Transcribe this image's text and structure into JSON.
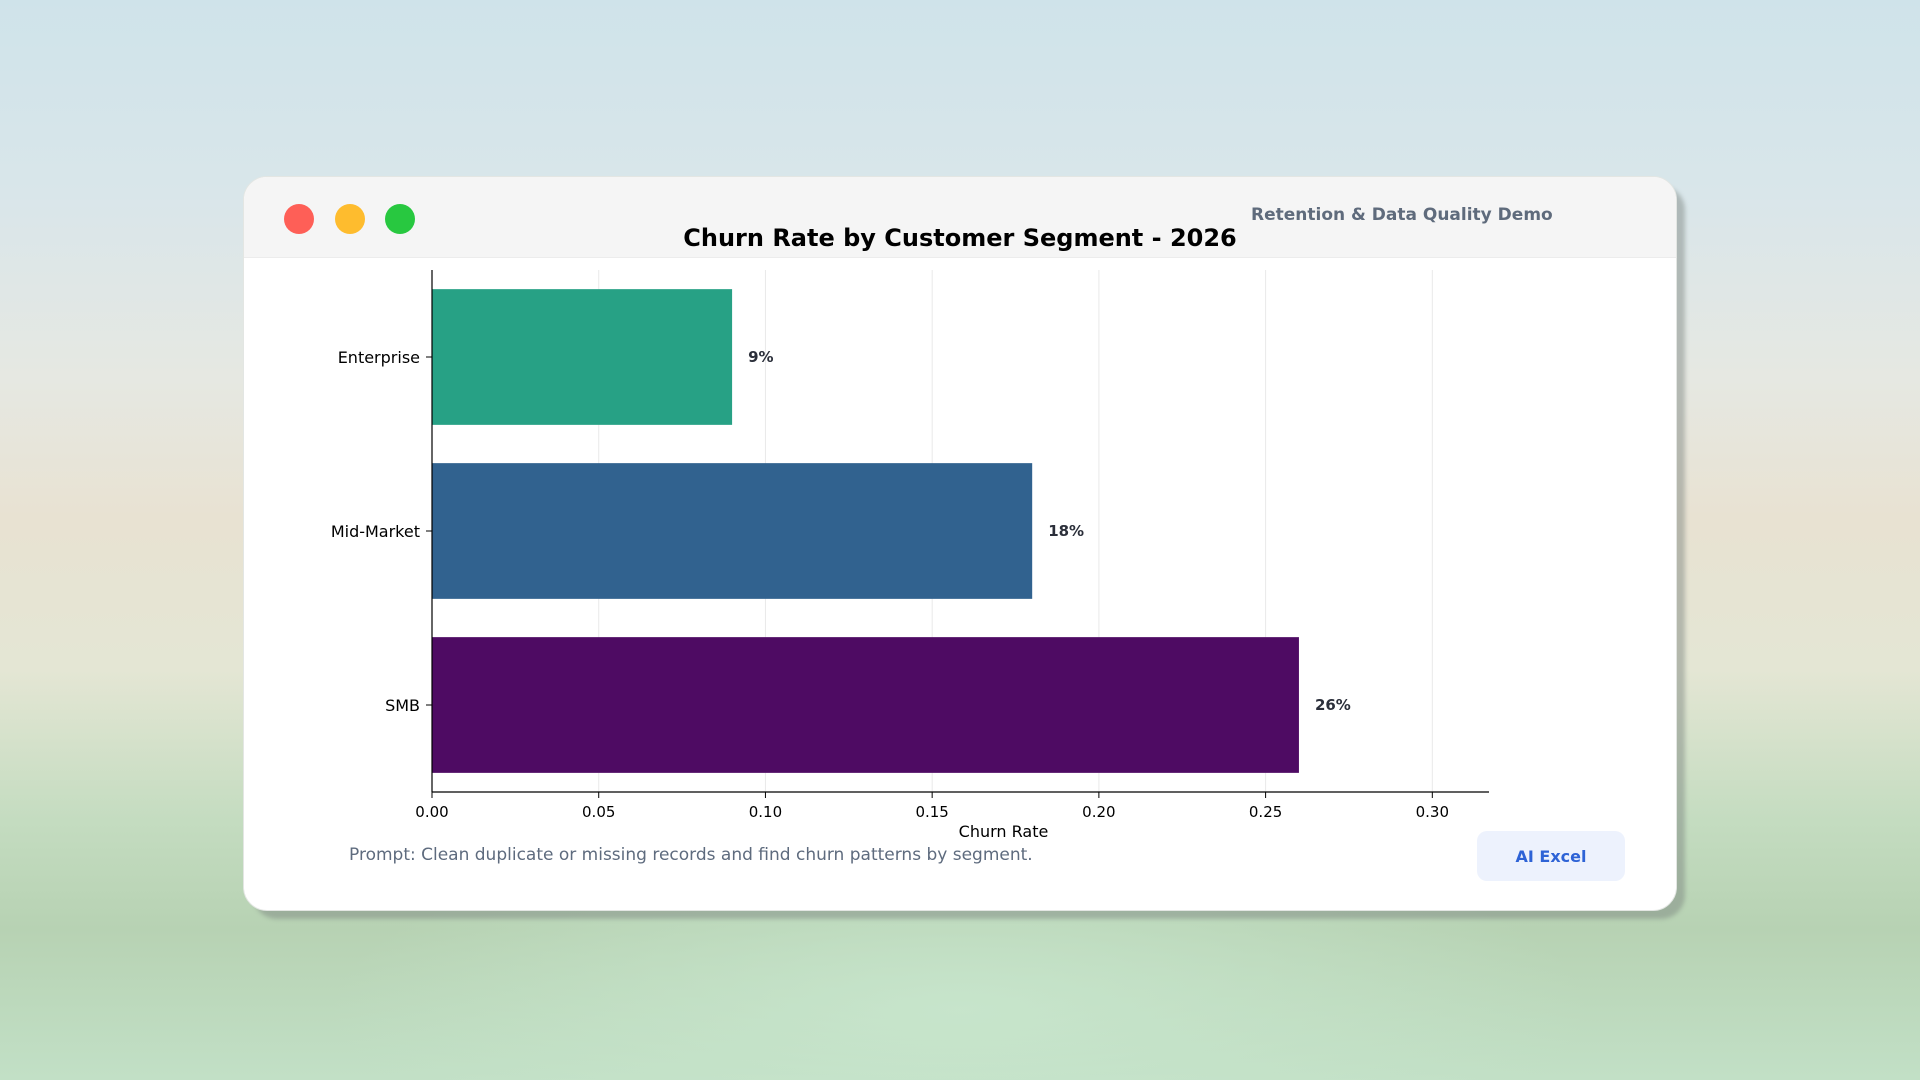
{
  "window": {
    "app_label": "Retention & Data Quality Demo",
    "prompt_text": "Prompt: Clean duplicate or missing records and find churn patterns by segment.",
    "ai_button_label": "AI Excel"
  },
  "chart_data": {
    "type": "bar",
    "orientation": "horizontal",
    "title": "Churn Rate by Customer Segment - 2026",
    "xlabel": "Churn Rate",
    "ylabel": "",
    "categories": [
      "Enterprise",
      "Mid-Market",
      "SMB"
    ],
    "values": [
      0.09,
      0.18,
      0.26
    ],
    "data_labels": [
      "9%",
      "18%",
      "26%"
    ],
    "colors": [
      "#27a185",
      "#31628f",
      "#4e0b63"
    ],
    "xlim": [
      0,
      0.317
    ],
    "xticks": [
      "0.00",
      "0.05",
      "0.10",
      "0.15",
      "0.20",
      "0.25",
      "0.30"
    ],
    "xtick_values": [
      0,
      0.05,
      0.1,
      0.15,
      0.2,
      0.25,
      0.3
    ],
    "grid": "vertical"
  }
}
